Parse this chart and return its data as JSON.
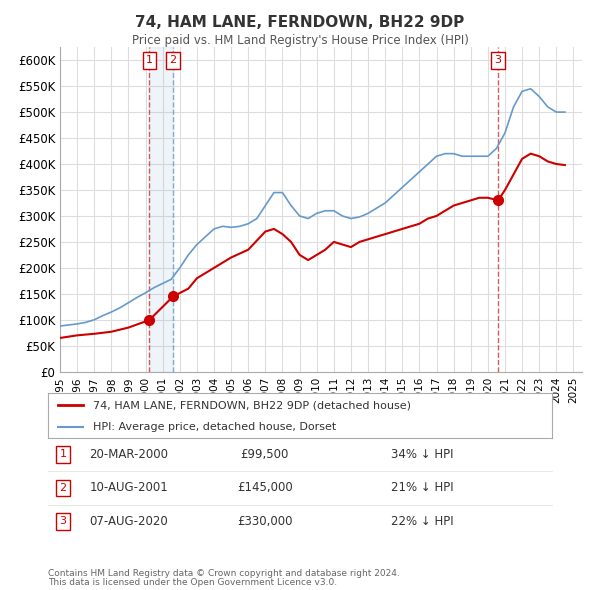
{
  "title": "74, HAM LANE, FERNDOWN, BH22 9DP",
  "subtitle": "Price paid vs. HM Land Registry's House Price Index (HPI)",
  "xlabel": "",
  "ylabel": "",
  "ylim": [
    0,
    625000
  ],
  "xlim_start": 1995.0,
  "xlim_end": 2025.5,
  "yticks": [
    0,
    50000,
    100000,
    150000,
    200000,
    250000,
    300000,
    350000,
    400000,
    450000,
    500000,
    550000,
    600000
  ],
  "ytick_labels": [
    "£0",
    "£50K",
    "£100K",
    "£150K",
    "£200K",
    "£250K",
    "£300K",
    "£350K",
    "£400K",
    "£450K",
    "£500K",
    "£550K",
    "£600K"
  ],
  "xticks": [
    1995,
    1996,
    1997,
    1998,
    1999,
    2000,
    2001,
    2002,
    2003,
    2004,
    2005,
    2006,
    2007,
    2008,
    2009,
    2010,
    2011,
    2012,
    2013,
    2014,
    2015,
    2016,
    2017,
    2018,
    2019,
    2020,
    2021,
    2022,
    2023,
    2024,
    2025
  ],
  "sale_color": "#cc0000",
  "hpi_color": "#6699cc",
  "marker_color": "#cc0000",
  "vline_color_1": "#cc3333",
  "vline_color_2": "#6699cc",
  "grid_color": "#dddddd",
  "background_color": "#ffffff",
  "legend_label_sale": "74, HAM LANE, FERNDOWN, BH22 9DP (detached house)",
  "legend_label_hpi": "HPI: Average price, detached house, Dorset",
  "transactions": [
    {
      "id": 1,
      "date": 2000.22,
      "price": 99500,
      "pct": "34%",
      "label": "20-MAR-2000",
      "price_str": "£99,500"
    },
    {
      "id": 2,
      "date": 2001.61,
      "price": 145000,
      "pct": "21%",
      "label": "10-AUG-2001",
      "price_str": "£145,000"
    },
    {
      "id": 3,
      "date": 2020.6,
      "price": 330000,
      "pct": "22%",
      "label": "07-AUG-2020",
      "price_str": "£330,000"
    }
  ],
  "footer_line1": "Contains HM Land Registry data © Crown copyright and database right 2024.",
  "footer_line2": "This data is licensed under the Open Government Licence v3.0.",
  "sale_line_data": {
    "x": [
      1995.0,
      1996.0,
      1997.0,
      1998.0,
      1999.0,
      2000.22,
      2001.61,
      2002.5,
      2003.0,
      2004.0,
      2005.0,
      2006.0,
      2007.0,
      2007.5,
      2008.0,
      2008.5,
      2009.0,
      2009.5,
      2010.0,
      2010.5,
      2011.0,
      2011.5,
      2012.0,
      2012.5,
      2013.0,
      2013.5,
      2014.0,
      2014.5,
      2015.0,
      2015.5,
      2016.0,
      2016.5,
      2017.0,
      2017.5,
      2018.0,
      2018.5,
      2019.0,
      2019.5,
      2020.0,
      2020.6,
      2021.0,
      2021.5,
      2022.0,
      2022.5,
      2023.0,
      2023.5,
      2024.0,
      2024.5
    ],
    "y": [
      65000,
      70000,
      73000,
      77000,
      85000,
      99500,
      145000,
      160000,
      180000,
      200000,
      220000,
      235000,
      270000,
      275000,
      265000,
      250000,
      225000,
      215000,
      225000,
      235000,
      250000,
      245000,
      240000,
      250000,
      255000,
      260000,
      265000,
      270000,
      275000,
      280000,
      285000,
      295000,
      300000,
      310000,
      320000,
      325000,
      330000,
      335000,
      335000,
      330000,
      350000,
      380000,
      410000,
      420000,
      415000,
      405000,
      400000,
      398000
    ]
  },
  "hpi_line_data": {
    "x": [
      1995.0,
      1995.5,
      1996.0,
      1996.5,
      1997.0,
      1997.5,
      1998.0,
      1998.5,
      1999.0,
      1999.5,
      2000.0,
      2000.5,
      2001.0,
      2001.5,
      2002.0,
      2002.5,
      2003.0,
      2003.5,
      2004.0,
      2004.5,
      2005.0,
      2005.5,
      2006.0,
      2006.5,
      2007.0,
      2007.5,
      2008.0,
      2008.5,
      2009.0,
      2009.5,
      2010.0,
      2010.5,
      2011.0,
      2011.5,
      2012.0,
      2012.5,
      2013.0,
      2013.5,
      2014.0,
      2014.5,
      2015.0,
      2015.5,
      2016.0,
      2016.5,
      2017.0,
      2017.5,
      2018.0,
      2018.5,
      2019.0,
      2019.5,
      2020.0,
      2020.5,
      2021.0,
      2021.5,
      2022.0,
      2022.5,
      2023.0,
      2023.5,
      2024.0,
      2024.5
    ],
    "y": [
      88000,
      90000,
      92000,
      95000,
      100000,
      108000,
      115000,
      123000,
      133000,
      143000,
      152000,
      162000,
      170000,
      178000,
      200000,
      225000,
      245000,
      260000,
      275000,
      280000,
      278000,
      280000,
      285000,
      295000,
      320000,
      345000,
      345000,
      320000,
      300000,
      295000,
      305000,
      310000,
      310000,
      300000,
      295000,
      298000,
      305000,
      315000,
      325000,
      340000,
      355000,
      370000,
      385000,
      400000,
      415000,
      420000,
      420000,
      415000,
      415000,
      415000,
      415000,
      430000,
      460000,
      510000,
      540000,
      545000,
      530000,
      510000,
      500000,
      500000
    ]
  }
}
